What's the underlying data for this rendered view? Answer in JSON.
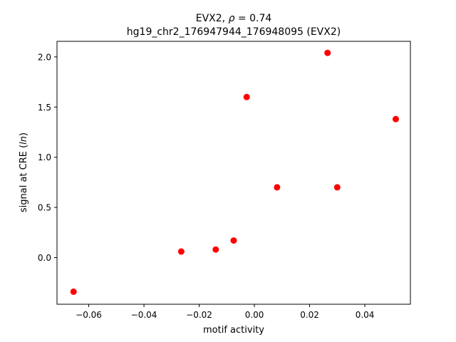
{
  "chart_data": {
    "type": "scatter",
    "title_line1_prefix": "EVX2, ",
    "title_line1_rho": "ρ",
    "title_line1_suffix": " = 0.74",
    "title_line2": "hg19_chr2_176947944_176948095 (EVX2)",
    "xlabel": "motif activity",
    "ylabel_prefix": "signal at CRE (",
    "ylabel_italic": "ln",
    "ylabel_suffix": ")",
    "xlim": [
      -0.0715,
      0.0565
    ],
    "ylim": [
      -0.465,
      2.155
    ],
    "x_ticks": [
      -0.06,
      -0.04,
      -0.02,
      0.0,
      0.02,
      0.04
    ],
    "x_tick_labels": [
      "−0.06",
      "−0.04",
      "−0.02",
      "0.00",
      "0.02",
      "0.04"
    ],
    "y_ticks": [
      0.0,
      0.5,
      1.0,
      1.5,
      2.0
    ],
    "y_tick_labels": [
      "0.0",
      "0.5",
      "1.0",
      "1.5",
      "2.0"
    ],
    "marker_color": "#ff0000",
    "points": [
      {
        "x": -0.0655,
        "y": -0.34
      },
      {
        "x": -0.0265,
        "y": 0.06
      },
      {
        "x": -0.014,
        "y": 0.08
      },
      {
        "x": -0.0075,
        "y": 0.17
      },
      {
        "x": -0.0028,
        "y": 1.6
      },
      {
        "x": 0.0082,
        "y": 0.7
      },
      {
        "x": 0.0265,
        "y": 2.04
      },
      {
        "x": 0.03,
        "y": 0.7
      },
      {
        "x": 0.0512,
        "y": 1.38
      }
    ]
  }
}
